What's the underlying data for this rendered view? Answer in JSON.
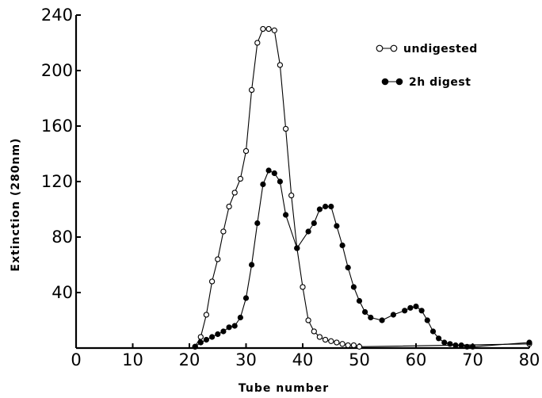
{
  "chart_data": {
    "type": "line",
    "title": "",
    "xlabel": "Tube number",
    "ylabel": "Extinction (280nm)",
    "xlim": [
      0,
      80
    ],
    "ylim": [
      0,
      240
    ],
    "xticks": [
      0,
      10,
      20,
      30,
      40,
      50,
      60,
      70,
      80
    ],
    "yticks": [
      40,
      80,
      120,
      160,
      200,
      240
    ],
    "grid": false,
    "legend_position": "top-right",
    "series": [
      {
        "name": "undigested",
        "marker": "open-circle",
        "x": [
          21,
          22,
          23,
          24,
          25,
          26,
          27,
          28,
          29,
          30,
          31,
          32,
          33,
          34,
          35,
          36,
          37,
          38,
          39,
          40,
          41,
          42,
          43,
          44,
          45,
          46,
          47,
          48,
          49,
          50,
          80
        ],
        "y": [
          1,
          8,
          24,
          48,
          64,
          84,
          102,
          112,
          122,
          142,
          186,
          220,
          230,
          230,
          229,
          204,
          158,
          110,
          72,
          44,
          20,
          12,
          8,
          6,
          5,
          4,
          3,
          2,
          2,
          1,
          3
        ]
      },
      {
        "name": "2h digest",
        "marker": "filled-circle",
        "x": [
          21,
          22,
          23,
          24,
          25,
          26,
          27,
          28,
          29,
          30,
          31,
          32,
          33,
          34,
          35,
          36,
          37,
          39,
          41,
          42,
          43,
          44,
          45,
          46,
          47,
          48,
          49,
          50,
          51,
          52,
          54,
          56,
          58,
          59,
          60,
          61,
          62,
          63,
          64,
          65,
          66,
          67,
          68,
          69,
          70,
          80
        ],
        "y": [
          1,
          4,
          6,
          8,
          10,
          12,
          15,
          16,
          22,
          36,
          60,
          90,
          118,
          128,
          126,
          120,
          96,
          72,
          84,
          90,
          100,
          102,
          102,
          88,
          74,
          58,
          44,
          34,
          26,
          22,
          20,
          24,
          27,
          29,
          30,
          27,
          20,
          12,
          7,
          4,
          3,
          2,
          2,
          1,
          1,
          4
        ]
      }
    ]
  }
}
